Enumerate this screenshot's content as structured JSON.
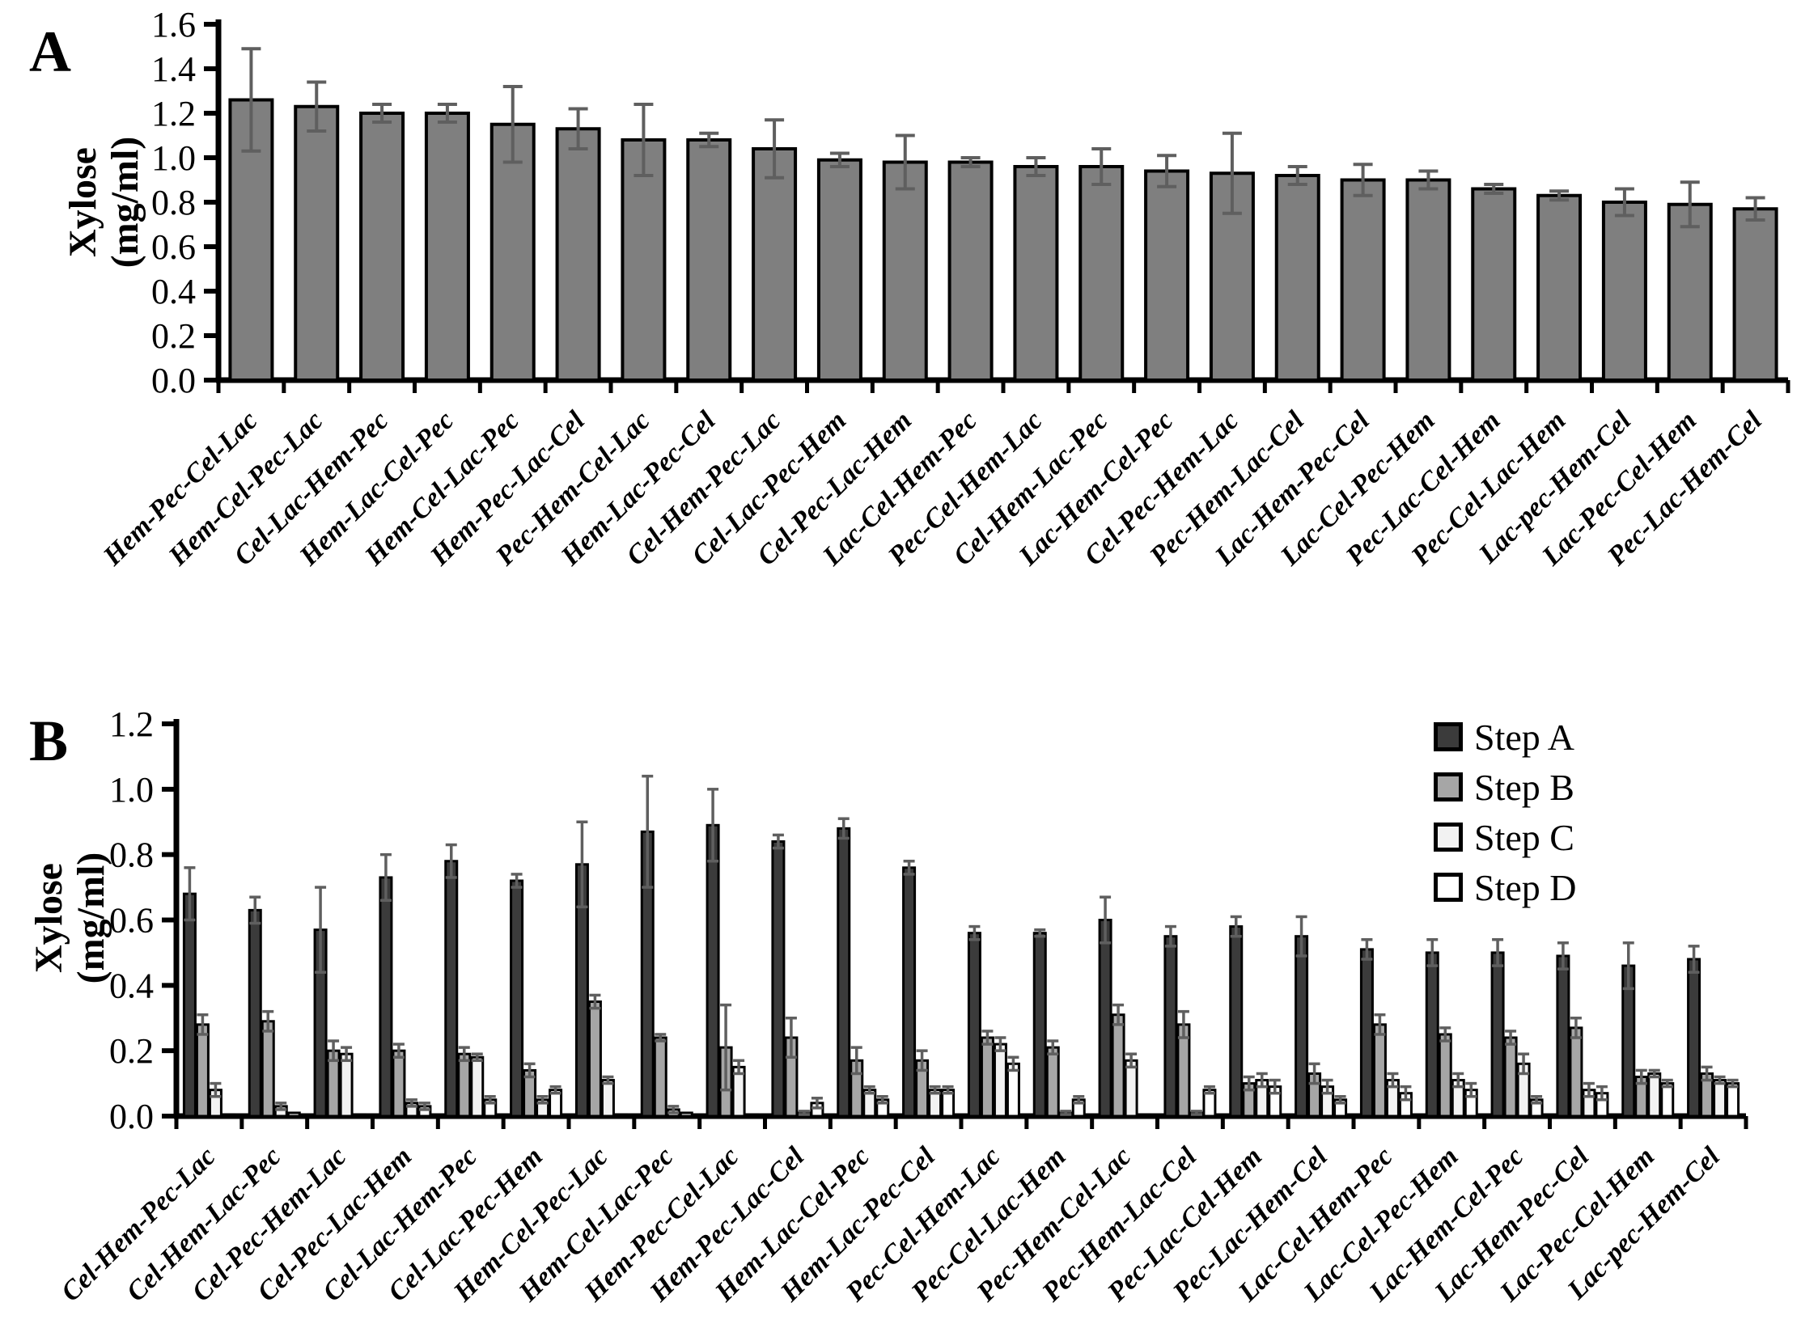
{
  "panels": {
    "A": {
      "letter": "A",
      "ylabel_line1": "Xylose",
      "ylabel_line2": "(mg/ml)"
    },
    "B": {
      "letter": "B",
      "ylabel_line1": "Xylose",
      "ylabel_line2": "(mg/ml)"
    }
  },
  "colors": {
    "panelA_bar": "#7f7f7f",
    "bar_border": "#000000",
    "error_bar": "#5f5f5f",
    "axis": "#000000",
    "stepA": "#3b3b3b",
    "stepB": "#a6a6a6",
    "stepC": "#f2f2f2",
    "stepD": "#ffffff"
  },
  "chart_data": [
    {
      "type": "bar",
      "panel": "A",
      "title": "",
      "xlabel": "",
      "ylabel": "Xylose (mg/ml)",
      "ylim": [
        0.0,
        1.6
      ],
      "ytick_step": 0.2,
      "grid": false,
      "categories": [
        "Hem-Pec-Cel-Lac",
        "Hem-Cel-Pec-Lac",
        "Cel-Lac-Hem-Pec",
        "Hem-Lac-Cel-Pec",
        "Hem-Cel-Lac-Pec",
        "Hem-Pec-Lac-Cel",
        "Pec-Hem-Cel-Lac",
        "Hem-Lac-Pec-Cel",
        "Cel-Hem-Pec-Lac",
        "Cel-Lac-Pec-Hem",
        "Cel-Pec-Lac-Hem",
        "Lac-Cel-Hem-Pec",
        "Pec-Cel-Hem-Lac",
        "Cel-Hem-Lac-Pec",
        "Lac-Hem-Cel-Pec",
        "Cel-Pec-Hem-Lac",
        "Pec-Hem-Lac-Cel",
        "Lac-Hem-Pec-Cel",
        "Lac-Cel-Pec-Hem",
        "Pec-Lac-Cel-Hem",
        "Pec-Cel-Lac-Hem",
        "Lac-pec-Hem-Cel",
        "Lac-Pec-Cel-Hem",
        "Pec-Lac-Hem-Cel"
      ],
      "values": [
        1.26,
        1.23,
        1.2,
        1.2,
        1.15,
        1.13,
        1.08,
        1.08,
        1.04,
        0.99,
        0.98,
        0.98,
        0.96,
        0.96,
        0.94,
        0.93,
        0.92,
        0.9,
        0.9,
        0.86,
        0.83,
        0.8,
        0.79,
        0.77
      ],
      "errors": [
        0.23,
        0.11,
        0.04,
        0.04,
        0.17,
        0.09,
        0.16,
        0.03,
        0.13,
        0.03,
        0.12,
        0.02,
        0.04,
        0.08,
        0.07,
        0.18,
        0.04,
        0.07,
        0.04,
        0.02,
        0.02,
        0.06,
        0.1,
        0.05
      ]
    },
    {
      "type": "bar",
      "panel": "B",
      "title": "",
      "xlabel": "",
      "ylabel": "Xylose (mg/ml)",
      "ylim": [
        0.0,
        1.2
      ],
      "ytick_step": 0.2,
      "grid": false,
      "legend_position": "upper right",
      "categories": [
        "Cel-Hem-Pec-Lac",
        "Cel-Hem-Lac-Pec",
        "Cel-Pec-Hem-Lac",
        "Cel-Pec-Lac-Hem",
        "Cel-Lac-Hem-Pec",
        "Cel-Lac-Pec-Hem",
        "Hem-Cel-Pec-Lac",
        "Hem-Cel-Lac-Pec",
        "Hem-Pec-Cel-Lac",
        "Hem-Pec-Lac-Cel",
        "Hem-Lac-Cel-Pec",
        "Hem-Lac-Pec-Cel",
        "Pec-Cel-Hem-Lac",
        "Pec-Cel-Lac-Hem",
        "Pec-Hem-Cel-Lac",
        "Pec-Hem-Lac-Cel",
        "Pec-Lac-Cel-Hem",
        "Pec-Lac-Hem-Cel",
        "Lac-Cel-Hem-Pec",
        "Lac-Cel-Pec-Hem",
        "Lac-Hem-Cel-Pec",
        "Lac-Hem-Pec-Cel",
        "Lac-Pec-Cel-Hem",
        "Lac-pec-Hem-Cel"
      ],
      "series": [
        {
          "name": "Step A",
          "color": "#3b3b3b",
          "values": [
            0.68,
            0.63,
            0.57,
            0.73,
            0.78,
            0.72,
            0.77,
            0.87,
            0.89,
            0.84,
            0.88,
            0.76,
            0.56,
            0.56,
            0.6,
            0.55,
            0.58,
            0.55,
            0.51,
            0.5,
            0.5,
            0.49,
            0.46,
            0.48
          ],
          "errors": [
            0.08,
            0.04,
            0.13,
            0.07,
            0.05,
            0.02,
            0.13,
            0.17,
            0.11,
            0.02,
            0.03,
            0.02,
            0.02,
            0.01,
            0.07,
            0.03,
            0.03,
            0.06,
            0.03,
            0.04,
            0.04,
            0.04,
            0.07,
            0.04
          ]
        },
        {
          "name": "Step B",
          "color": "#a6a6a6",
          "values": [
            0.28,
            0.29,
            0.2,
            0.2,
            0.19,
            0.14,
            0.35,
            0.24,
            0.21,
            0.24,
            0.17,
            0.17,
            0.24,
            0.21,
            0.31,
            0.28,
            0.1,
            0.13,
            0.28,
            0.25,
            0.24,
            0.27,
            0.12,
            0.13
          ],
          "errors": [
            0.03,
            0.03,
            0.03,
            0.02,
            0.02,
            0.02,
            0.02,
            0.01,
            0.13,
            0.06,
            0.04,
            0.03,
            0.02,
            0.02,
            0.03,
            0.04,
            0.02,
            0.03,
            0.03,
            0.02,
            0.02,
            0.03,
            0.02,
            0.02
          ]
        },
        {
          "name": "Step C",
          "color": "#f2f2f2",
          "values": [
            0.08,
            0.03,
            0.19,
            0.04,
            0.18,
            0.05,
            0.11,
            0.02,
            0.15,
            0.01,
            0.08,
            0.08,
            0.22,
            0.01,
            0.17,
            0.01,
            0.11,
            0.09,
            0.11,
            0.11,
            0.16,
            0.08,
            0.13,
            0.11
          ],
          "errors": [
            0.02,
            0.01,
            0.02,
            0.01,
            0.01,
            0.01,
            0.01,
            0.01,
            0.02,
            0.005,
            0.01,
            0.01,
            0.02,
            0.005,
            0.02,
            0.005,
            0.02,
            0.02,
            0.02,
            0.02,
            0.03,
            0.02,
            0.01,
            0.01
          ]
        },
        {
          "name": "Step D",
          "color": "#ffffff",
          "values": [
            0.005,
            0.01,
            0.005,
            0.03,
            0.05,
            0.08,
            0.005,
            0.01,
            0.005,
            0.04,
            0.05,
            0.08,
            0.16,
            0.05,
            0.005,
            0.08,
            0.09,
            0.05,
            0.07,
            0.08,
            0.05,
            0.07,
            0.1,
            0.1
          ],
          "errors": [
            0,
            0,
            0,
            0.01,
            0.01,
            0.01,
            0,
            0,
            0,
            0.015,
            0.01,
            0.01,
            0.02,
            0.01,
            0,
            0.01,
            0.02,
            0.01,
            0.02,
            0.02,
            0.01,
            0.02,
            0.01,
            0.01
          ]
        }
      ]
    }
  ]
}
